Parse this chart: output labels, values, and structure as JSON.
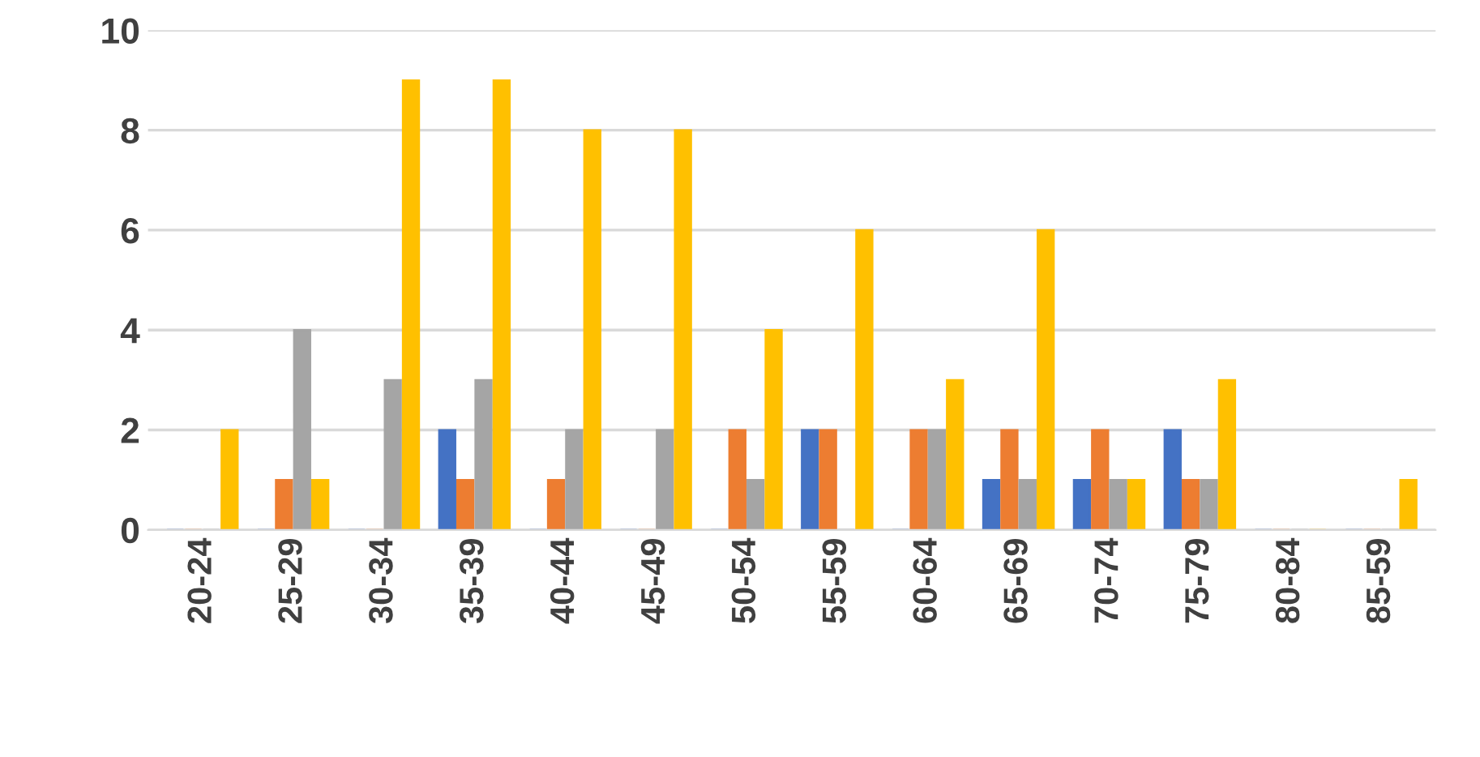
{
  "chart_data": {
    "type": "bar",
    "categories": [
      "20-24",
      "25-29",
      "30-34",
      "35-39",
      "40-44",
      "45-49",
      "50-54",
      "55-59",
      "60-64",
      "65-69",
      "70-74",
      "75-79",
      "80-84",
      "85-59"
    ],
    "series": [
      {
        "color": "#4472c4",
        "values": [
          0,
          0,
          0,
          2,
          0,
          0,
          0,
          2,
          0,
          1,
          1,
          2,
          0,
          0
        ]
      },
      {
        "color": "#ed7d31",
        "values": [
          0,
          1,
          0,
          1,
          1,
          0,
          2,
          2,
          2,
          2,
          2,
          1,
          0,
          0
        ]
      },
      {
        "color": "#a5a5a5",
        "values": [
          0,
          4,
          3,
          3,
          2,
          2,
          1,
          0,
          2,
          1,
          1,
          1,
          0,
          0
        ]
      },
      {
        "color": "#ffc000",
        "values": [
          2,
          1,
          9,
          9,
          8,
          8,
          4,
          6,
          3,
          6,
          1,
          3,
          0,
          1
        ]
      }
    ],
    "ylim": [
      0,
      10
    ],
    "yticks": [
      0,
      2,
      4,
      6,
      8,
      10
    ],
    "grid": "y",
    "legend": false
  }
}
